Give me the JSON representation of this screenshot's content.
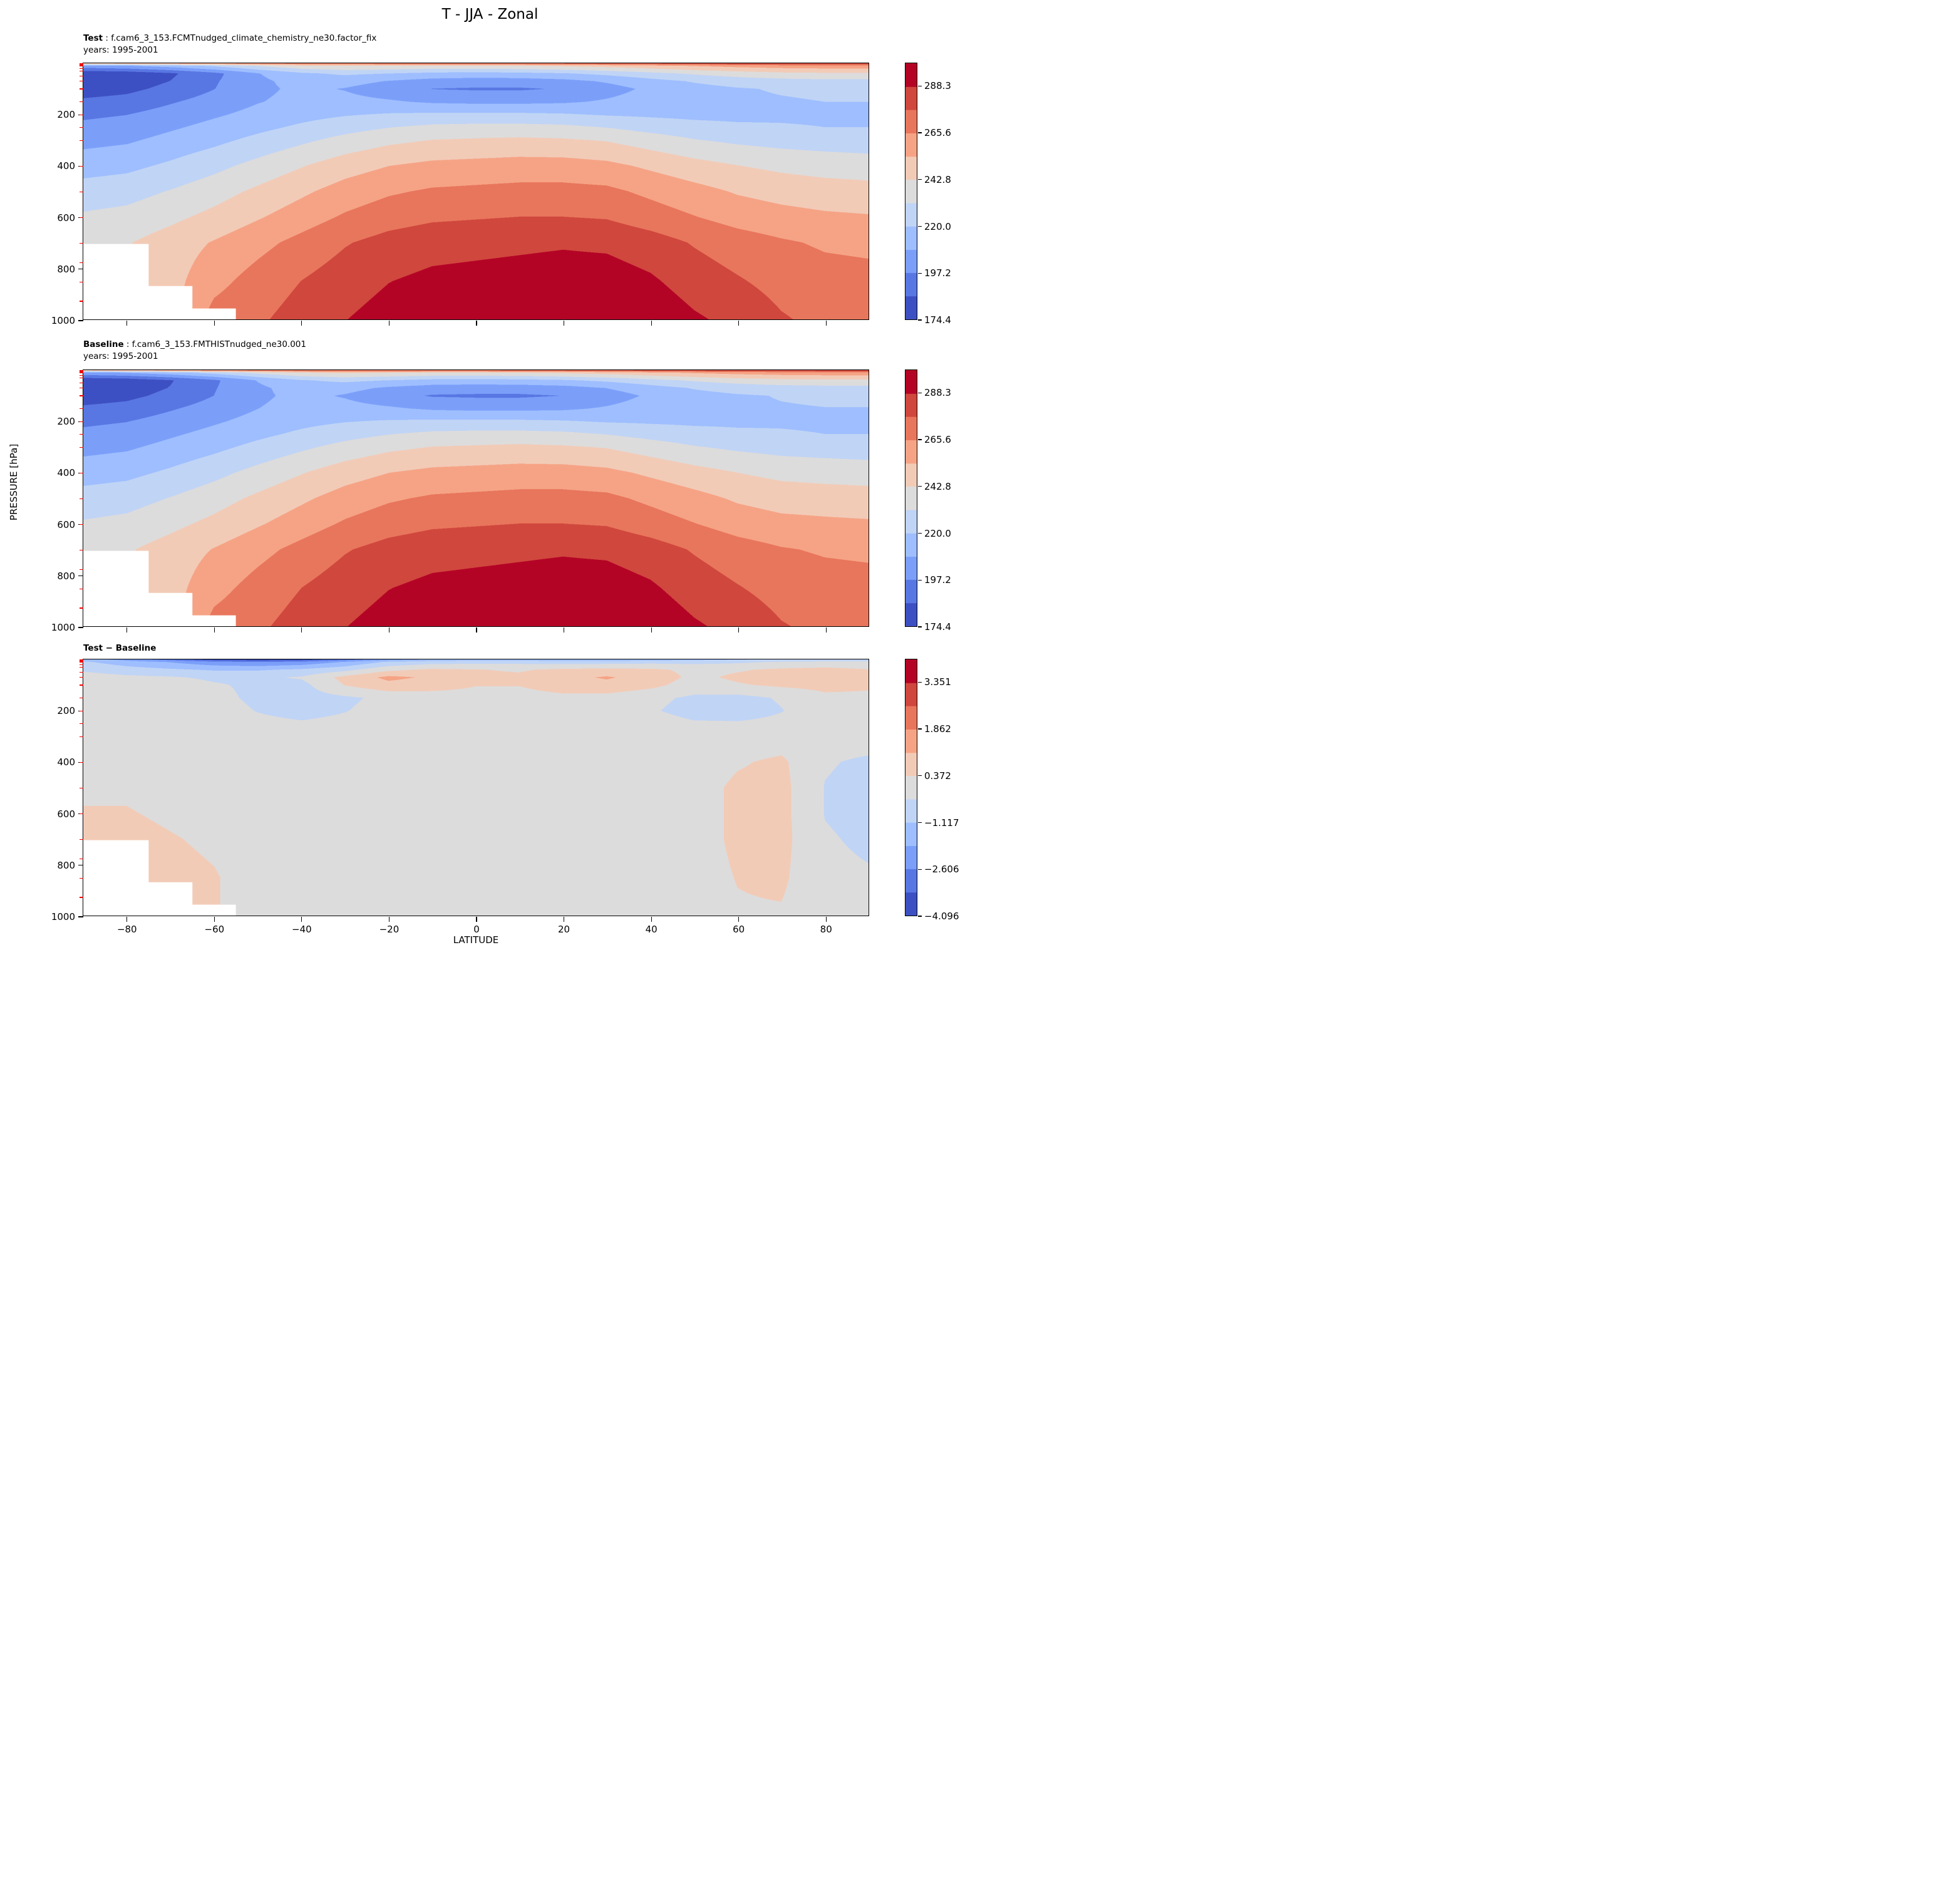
{
  "chart_data": {
    "type": "contour-filled",
    "title": "T - JJA - Zonal",
    "xlabel": "LATITUDE",
    "ylabel": "PRESSURE [hPa]",
    "x_range": [
      -90,
      90
    ],
    "y_range": [
      0,
      1000
    ],
    "y_axis_direction": "down",
    "grid_on": false,
    "x_ticks": [
      -80,
      -60,
      -40,
      -20,
      0,
      20,
      40,
      60,
      80
    ],
    "x_tick_labels": [
      "−80",
      "−60",
      "−40",
      "−20",
      "0",
      "20",
      "40",
      "60",
      "80"
    ],
    "y_ticks": [
      200,
      400,
      600,
      800,
      1000
    ],
    "y_tick_labels": [
      "200",
      "400",
      "600",
      "800",
      "1000"
    ],
    "reference_pressure_ticks": [
      1,
      2,
      3,
      5,
      7,
      10,
      20,
      30,
      50,
      70,
      100,
      150,
      200,
      250,
      300,
      400,
      500,
      600,
      700,
      775,
      850,
      925
    ],
    "reference_tick_color": "#ee0000",
    "colors": [
      "#3d50c3",
      "#5977e3",
      "#7b9ff9",
      "#9ebeff",
      "#c0d4f5",
      "#dddcdc",
      "#f2cbb7",
      "#f6a385",
      "#e8765c",
      "#d0473d",
      "#b40426"
    ],
    "lat": [
      -90,
      -80,
      -70,
      -60,
      -50,
      -40,
      -30,
      -20,
      -10,
      0,
      10,
      20,
      30,
      40,
      50,
      60,
      70,
      80,
      90
    ],
    "pressure_levels": [
      0,
      10,
      40,
      70,
      100,
      150,
      200,
      250,
      300,
      400,
      500,
      600,
      700,
      850,
      1000
    ],
    "surface_pressure_mask": [
      705,
      705,
      870,
      958,
      1015,
      1015,
      1015,
      1015,
      1015,
      1015,
      1015,
      1015,
      1015,
      1015,
      1015,
      1015,
      1015,
      1015,
      1015
    ],
    "fields": {
      "test": [
        [
          255,
          258,
          262,
          266,
          270,
          273,
          275,
          276,
          277,
          277,
          278,
          279,
          280,
          282,
          284,
          286,
          287,
          288,
          288
        ],
        [
          205,
          208,
          214,
          222,
          232,
          240,
          243,
          242,
          241,
          241,
          242,
          244,
          247,
          251,
          255,
          258,
          260,
          261,
          261
        ],
        [
          176,
          178,
          184,
          194,
          208,
          218,
          222,
          220,
          217,
          216,
          217,
          219,
          223,
          228,
          233,
          237,
          240,
          241,
          241
        ],
        [
          178,
          180,
          186,
          196,
          206,
          213,
          213,
          208,
          204,
          203,
          203,
          205,
          210,
          216,
          221,
          225,
          227,
          228,
          228
        ],
        [
          180,
          183,
          189,
          197,
          206,
          211,
          208,
          202,
          197,
          196,
          196,
          198,
          204,
          211,
          216,
          219,
          221,
          222,
          222
        ],
        [
          188,
          190,
          196,
          202,
          208,
          212,
          212,
          210,
          207,
          206,
          206,
          207,
          210,
          214,
          216,
          218,
          219,
          220,
          220
        ],
        [
          195,
          197,
          202,
          207,
          212,
          216,
          219,
          221,
          222,
          222,
          222,
          221,
          219,
          218,
          217,
          217,
          218,
          218,
          218
        ],
        [
          200,
          202,
          207,
          212,
          217,
          222,
          227,
          231,
          234,
          235,
          235,
          234,
          231,
          227,
          224,
          222,
          221,
          220,
          220
        ],
        [
          205,
          207,
          212,
          217,
          223,
          229,
          235,
          240,
          243,
          244,
          245,
          244,
          242,
          237,
          232,
          229,
          227,
          226,
          225
        ],
        [
          215,
          217,
          222,
          228,
          235,
          242,
          249,
          254,
          257,
          258,
          259,
          259,
          257,
          252,
          247,
          243,
          240,
          238,
          237
        ],
        [
          225,
          227,
          232,
          238,
          245,
          252,
          259,
          264,
          267,
          268,
          269,
          269,
          268,
          263,
          258,
          253,
          250,
          248,
          247
        ],
        [
          233,
          235,
          240,
          246,
          253,
          260,
          267,
          272,
          275,
          276,
          277,
          277,
          276,
          271,
          266,
          261,
          258,
          256,
          255
        ],
        [
          240,
          242,
          248,
          255,
          262,
          269,
          276,
          281,
          284,
          285,
          286,
          287,
          286,
          282,
          276,
          271,
          267,
          264,
          263
        ],
        [
          null,
          null,
          250,
          262,
          270,
          277,
          283,
          288,
          291,
          292,
          293,
          294,
          294,
          290,
          283,
          278,
          273,
          270,
          269
        ],
        [
          null,
          null,
          null,
          270,
          275,
          282,
          288,
          293,
          296,
          298,
          299,
          300,
          301,
          297,
          290,
          285,
          278,
          274,
          273
        ]
      ],
      "diff": [
        [
          -1.5,
          -2.2,
          -3.0,
          -3.8,
          -4.0,
          -3.8,
          -3.0,
          -2.2,
          -1.8,
          -1.6,
          -1.6,
          -1.8,
          -1.8,
          -1.6,
          -1.4,
          -1.2,
          -1.0,
          -0.9,
          -0.8
        ],
        [
          -1.0,
          -1.5,
          -1.9,
          -2.4,
          -2.6,
          -2.4,
          -1.8,
          -1.0,
          -0.7,
          -0.6,
          -0.6,
          -0.7,
          -0.7,
          -0.6,
          -0.6,
          -0.5,
          -0.3,
          -0.2,
          -0.2
        ],
        [
          -0.5,
          -0.8,
          -1.0,
          -1.2,
          -1.2,
          -1.0,
          -0.6,
          0.2,
          0.5,
          0.4,
          0.3,
          0.5,
          0.6,
          0.5,
          0.2,
          0.3,
          0.5,
          0.6,
          0.4
        ],
        [
          0.0,
          -0.2,
          -0.3,
          -0.5,
          -0.5,
          -0.3,
          0.6,
          1.3,
          1.0,
          0.5,
          0.5,
          0.9,
          1.2,
          0.8,
          0.2,
          0.5,
          0.7,
          0.8,
          0.6
        ],
        [
          0.2,
          0.1,
          0.0,
          -0.3,
          -0.5,
          -0.6,
          0.4,
          0.9,
          0.7,
          0.4,
          0.4,
          0.7,
          0.9,
          0.6,
          0.0,
          0.3,
          0.5,
          0.6,
          0.5
        ],
        [
          0.1,
          0.1,
          0.0,
          -0.2,
          -0.5,
          -0.7,
          -0.5,
          -0.2,
          0.0,
          0.1,
          0.1,
          0.2,
          0.1,
          -0.2,
          -0.5,
          -0.6,
          -0.3,
          0.2,
          0.2
        ],
        [
          0.1,
          0.1,
          0.0,
          -0.1,
          -0.4,
          -0.6,
          -0.4,
          -0.1,
          0.0,
          0.0,
          0.0,
          0.1,
          0.0,
          -0.3,
          -0.6,
          -0.7,
          -0.4,
          0.0,
          0.1
        ],
        [
          0.1,
          0.1,
          0.0,
          0.0,
          -0.2,
          -0.3,
          -0.2,
          0.0,
          0.0,
          0.0,
          0.0,
          0.0,
          0.0,
          -0.1,
          -0.3,
          -0.3,
          -0.2,
          0.0,
          0.0
        ],
        [
          0.1,
          0.1,
          0.1,
          0.0,
          -0.1,
          -0.1,
          0.0,
          0.0,
          0.0,
          0.0,
          0.0,
          0.0,
          0.0,
          0.0,
          -0.1,
          -0.1,
          0.0,
          0.0,
          0.0
        ],
        [
          0.2,
          0.2,
          0.1,
          0.1,
          0.0,
          0.0,
          0.0,
          0.0,
          0.0,
          0.0,
          0.0,
          0.0,
          0.0,
          0.0,
          0.0,
          0.3,
          0.5,
          -0.3,
          -0.5
        ],
        [
          0.3,
          0.3,
          0.2,
          0.1,
          0.0,
          0.0,
          0.0,
          0.0,
          0.0,
          0.0,
          0.0,
          0.0,
          0.0,
          0.0,
          0.1,
          0.5,
          0.6,
          -0.4,
          -0.6
        ],
        [
          0.4,
          0.4,
          0.3,
          0.2,
          0.1,
          0.0,
          0.0,
          0.0,
          0.0,
          0.0,
          0.0,
          0.0,
          0.0,
          0.0,
          0.1,
          0.5,
          0.6,
          -0.4,
          -0.6
        ],
        [
          0.5,
          0.5,
          0.4,
          0.3,
          0.1,
          0.0,
          0.0,
          0.0,
          0.0,
          0.0,
          0.0,
          0.0,
          0.0,
          0.0,
          0.1,
          0.5,
          0.6,
          -0.3,
          -0.5
        ],
        [
          null,
          null,
          0.5,
          0.4,
          0.2,
          0.1,
          0.0,
          0.0,
          0.0,
          0.0,
          0.0,
          0.0,
          0.0,
          0.0,
          0.1,
          0.4,
          0.5,
          -0.2,
          -0.3
        ],
        [
          null,
          null,
          null,
          0.4,
          0.2,
          0.1,
          0.0,
          0.0,
          0.0,
          0.0,
          0.0,
          0.0,
          0.0,
          0.0,
          0.1,
          0.3,
          0.3,
          -0.1,
          -0.2
        ]
      ]
    },
    "baseline_derivation": "baseline = test - diff",
    "panels": [
      {
        "name": "test",
        "field": "test",
        "title_bold": "Test",
        "title_rest": " : f.cam6_3_153.FCMTnudged_climate_chemistry_ne30.factor_fix",
        "subtitle": "years: 1995-2001",
        "boundaries": [
          174.44,
          185.83,
          197.21,
          208.6,
          219.98,
          231.37,
          242.76,
          254.14,
          265.53,
          276.91,
          288.3,
          299.68
        ],
        "colorbar_tick_labels": [
          "174.4",
          "197.2",
          "220.0",
          "242.8",
          "265.6",
          "288.3"
        ]
      },
      {
        "name": "baseline",
        "field": "baseline",
        "title_bold": "Baseline",
        "title_rest": " : f.cam6_3_153.FMTHISTnudged_ne30.001",
        "subtitle": "years: 1995-2001",
        "boundaries": [
          174.44,
          185.83,
          197.21,
          208.6,
          219.98,
          231.37,
          242.76,
          254.14,
          265.53,
          276.91,
          288.3,
          299.68
        ],
        "colorbar_tick_labels": [
          "174.4",
          "197.2",
          "220.0",
          "242.8",
          "265.6",
          "288.3"
        ]
      },
      {
        "name": "diff",
        "field": "diff",
        "title_bold": "Test − Baseline",
        "title_rest": "",
        "subtitle": "",
        "boundaries": [
          -4.096,
          -3.351,
          -2.606,
          -1.862,
          -1.117,
          -0.372,
          0.372,
          1.117,
          1.862,
          2.606,
          3.351,
          4.096
        ],
        "colorbar_tick_labels": [
          "−4.096",
          "−2.606",
          "−1.117",
          "0.372",
          "1.862",
          "3.351"
        ]
      }
    ]
  }
}
